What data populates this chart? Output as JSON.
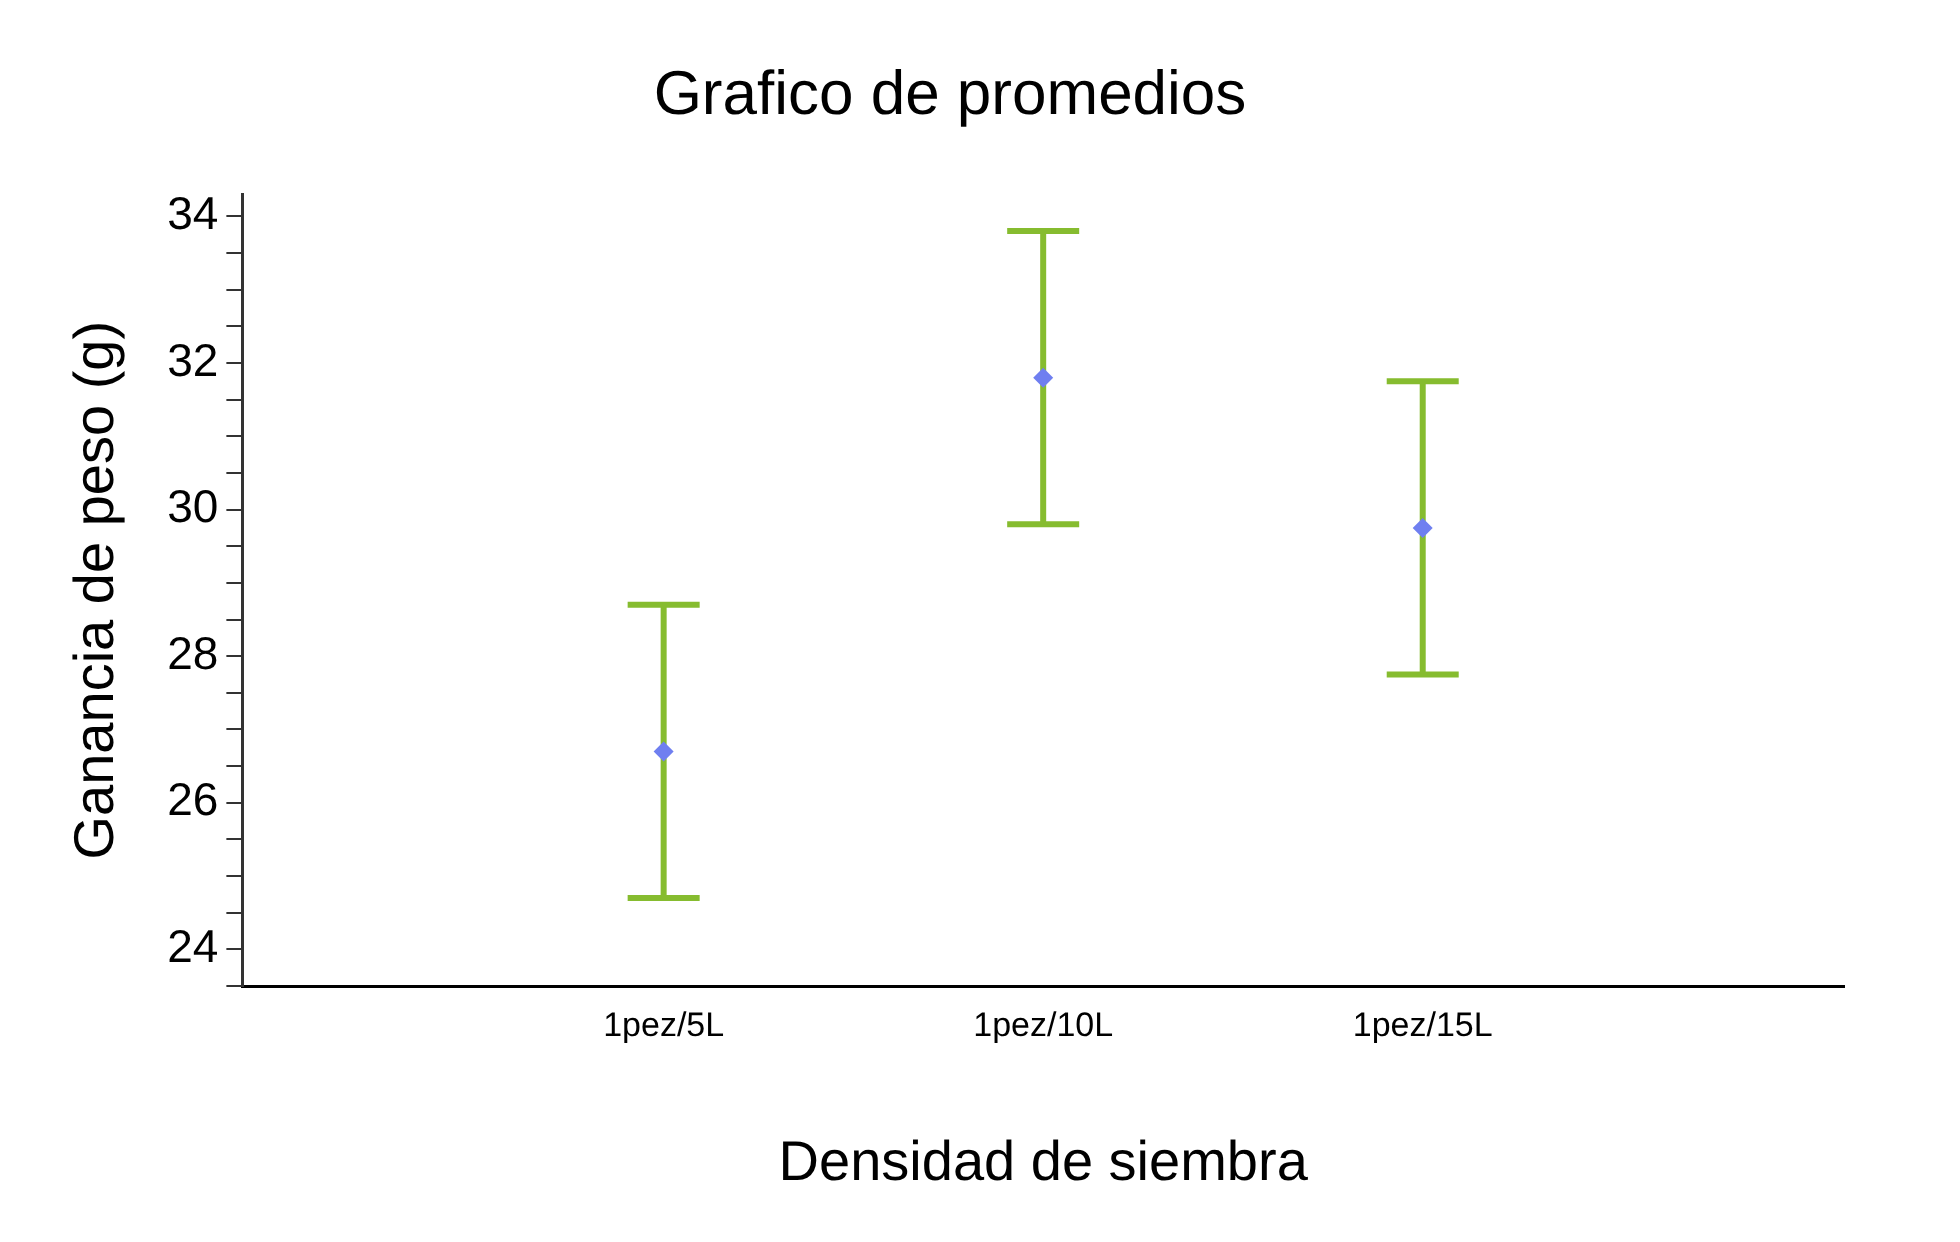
{
  "chart_data": {
    "type": "scatter",
    "title": "Grafico de promedios",
    "xlabel": "Densidad de siembra",
    "ylabel": "Ganancia de peso (g)",
    "categories": [
      "1pez/5L",
      "1pez/10L",
      "1pez/15L"
    ],
    "series": [
      {
        "color": "#6f7ff0",
        "values": [
          26.7,
          31.8,
          29.75
        ],
        "errors": [
          2.0,
          2.0,
          2.0
        ]
      }
    ],
    "ylim": [
      23.5,
      34.3
    ],
    "yticks": [
      {
        "value": 23.5,
        "label": null
      },
      24,
      {
        "value": 24.5,
        "label": null
      },
      {
        "value": 25,
        "label": null
      },
      {
        "value": 25.5,
        "label": null
      },
      26,
      {
        "value": 26.5,
        "label": null
      },
      {
        "value": 27,
        "label": null
      },
      {
        "value": 27.5,
        "label": null
      },
      28,
      {
        "value": 28.5,
        "label": null
      },
      {
        "value": 29,
        "label": null
      },
      {
        "value": 29.5,
        "label": null
      },
      30,
      {
        "value": 30.5,
        "label": null
      },
      {
        "value": 31,
        "label": null
      },
      {
        "value": 31.5,
        "label": null
      },
      32,
      {
        "value": 32.5,
        "label": null
      },
      {
        "value": 33,
        "label": null
      },
      {
        "value": 33.5,
        "label": null
      },
      34
    ],
    "grid": false,
    "legend": false,
    "marker": "diamond"
  }
}
